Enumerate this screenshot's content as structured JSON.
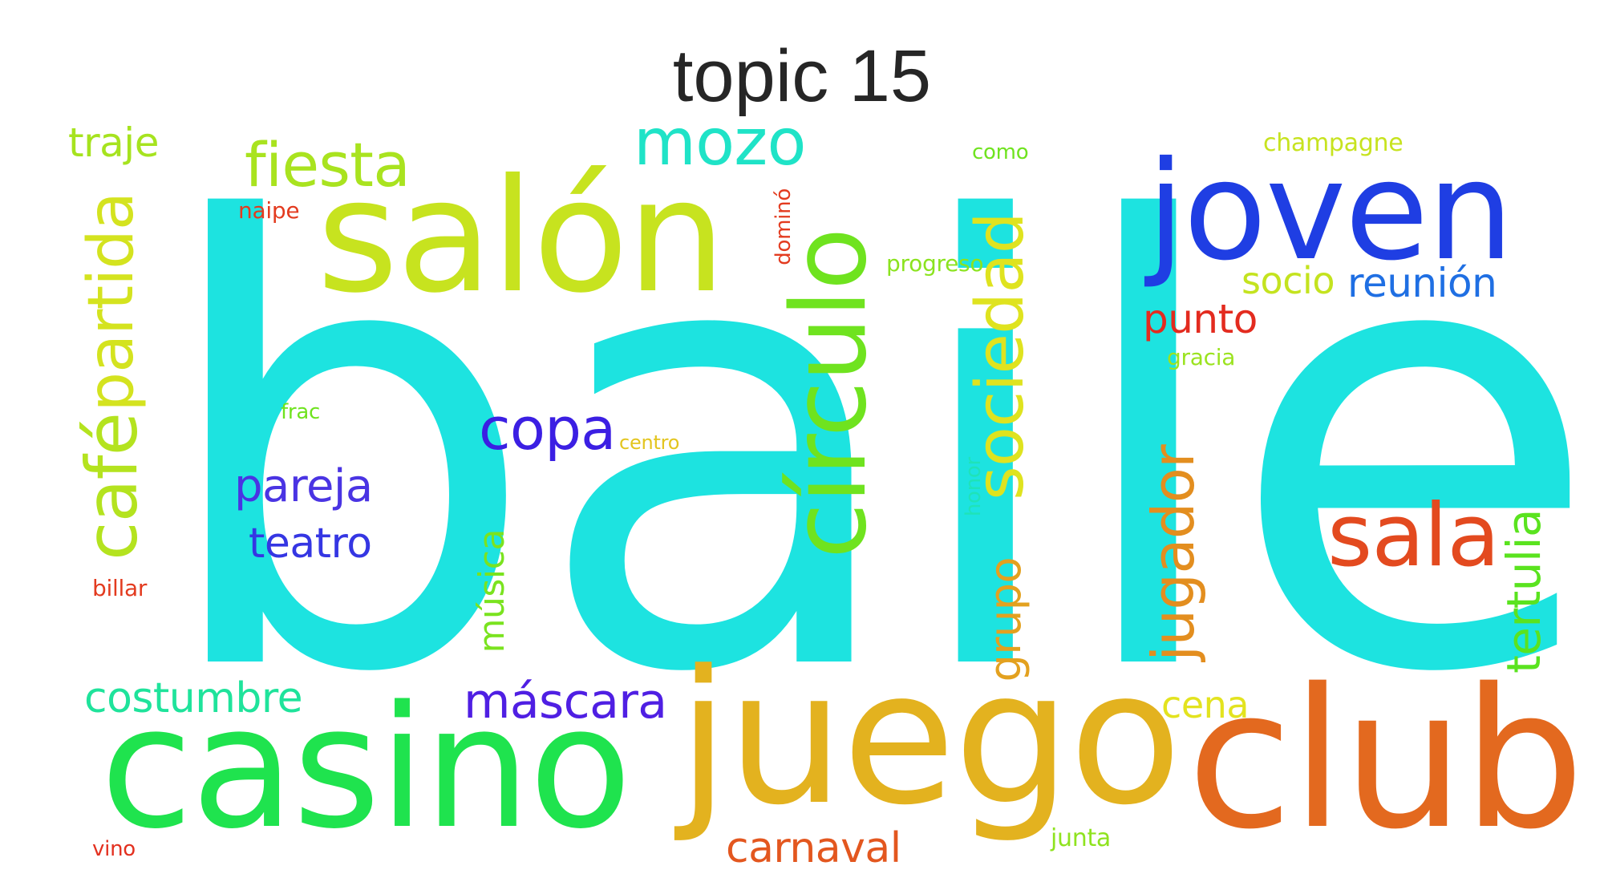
{
  "title": "topic 15",
  "words": [
    {
      "text": "baile",
      "color": "#1de3e0",
      "vertical": false
    },
    {
      "text": "casino",
      "color": "#1fe34e",
      "vertical": false
    },
    {
      "text": "juego",
      "color": "#e3b21f",
      "vertical": false
    },
    {
      "text": "club",
      "color": "#e3691f",
      "vertical": false
    },
    {
      "text": "salón",
      "color": "#c7e31f",
      "vertical": false
    },
    {
      "text": "joven",
      "color": "#1f3ee3",
      "vertical": false
    },
    {
      "text": "círculo",
      "color": "#6fe31f",
      "vertical": true
    },
    {
      "text": "sociedad",
      "color": "#dfe31f",
      "vertical": true
    },
    {
      "text": "sala",
      "color": "#e34a1f",
      "vertical": false
    },
    {
      "text": "café",
      "color": "#b4e31f",
      "vertical": true
    },
    {
      "text": "partida",
      "color": "#d4e31f",
      "vertical": true
    },
    {
      "text": "mozo",
      "color": "#1fe3c7",
      "vertical": false
    },
    {
      "text": "fiesta",
      "color": "#a9e31f",
      "vertical": false
    },
    {
      "text": "jugador",
      "color": "#e38e1f",
      "vertical": true
    },
    {
      "text": "copa",
      "color": "#3b1fe3",
      "vertical": false
    },
    {
      "text": "máscara",
      "color": "#4f1fe3",
      "vertical": false
    },
    {
      "text": "tertulia",
      "color": "#5ae31f",
      "vertical": true
    },
    {
      "text": "pareja",
      "color": "#4a34e3",
      "vertical": false
    },
    {
      "text": "teatro",
      "color": "#3536e3",
      "vertical": false
    },
    {
      "text": "grupo",
      "color": "#e3a11f",
      "vertical": true
    },
    {
      "text": "costumbre",
      "color": "#1fe39b",
      "vertical": false
    },
    {
      "text": "reunión",
      "color": "#1f6fe3",
      "vertical": false
    },
    {
      "text": "punto",
      "color": "#e32b1f",
      "vertical": false
    },
    {
      "text": "música",
      "color": "#7ae31f",
      "vertical": true
    },
    {
      "text": "carnaval",
      "color": "#e3571f",
      "vertical": false
    },
    {
      "text": "traje",
      "color": "#a6e31f",
      "vertical": false
    },
    {
      "text": "socio",
      "color": "#c4e31f",
      "vertical": false
    },
    {
      "text": "cena",
      "color": "#e3e31f",
      "vertical": false
    },
    {
      "text": "naipe",
      "color": "#e33b1f",
      "vertical": false
    },
    {
      "text": "billar",
      "color": "#e33b1f",
      "vertical": false
    },
    {
      "text": "vino",
      "color": "#e3301f",
      "vertical": false
    },
    {
      "text": "junta",
      "color": "#8fe31f",
      "vertical": false
    },
    {
      "text": "dominó",
      "color": "#e33b1f",
      "vertical": true
    },
    {
      "text": "progreso",
      "color": "#8be31f",
      "vertical": false
    },
    {
      "text": "frac",
      "color": "#6fe31f",
      "vertical": false
    },
    {
      "text": "centro",
      "color": "#e3c51f",
      "vertical": false
    },
    {
      "text": "honor",
      "color": "#1fe3b8",
      "vertical": true
    },
    {
      "text": "gracia",
      "color": "#9be31f",
      "vertical": false
    },
    {
      "text": "champagne",
      "color": "#c7e31f",
      "vertical": false
    },
    {
      "text": "como",
      "color": "#6fe31f",
      "vertical": false
    }
  ]
}
